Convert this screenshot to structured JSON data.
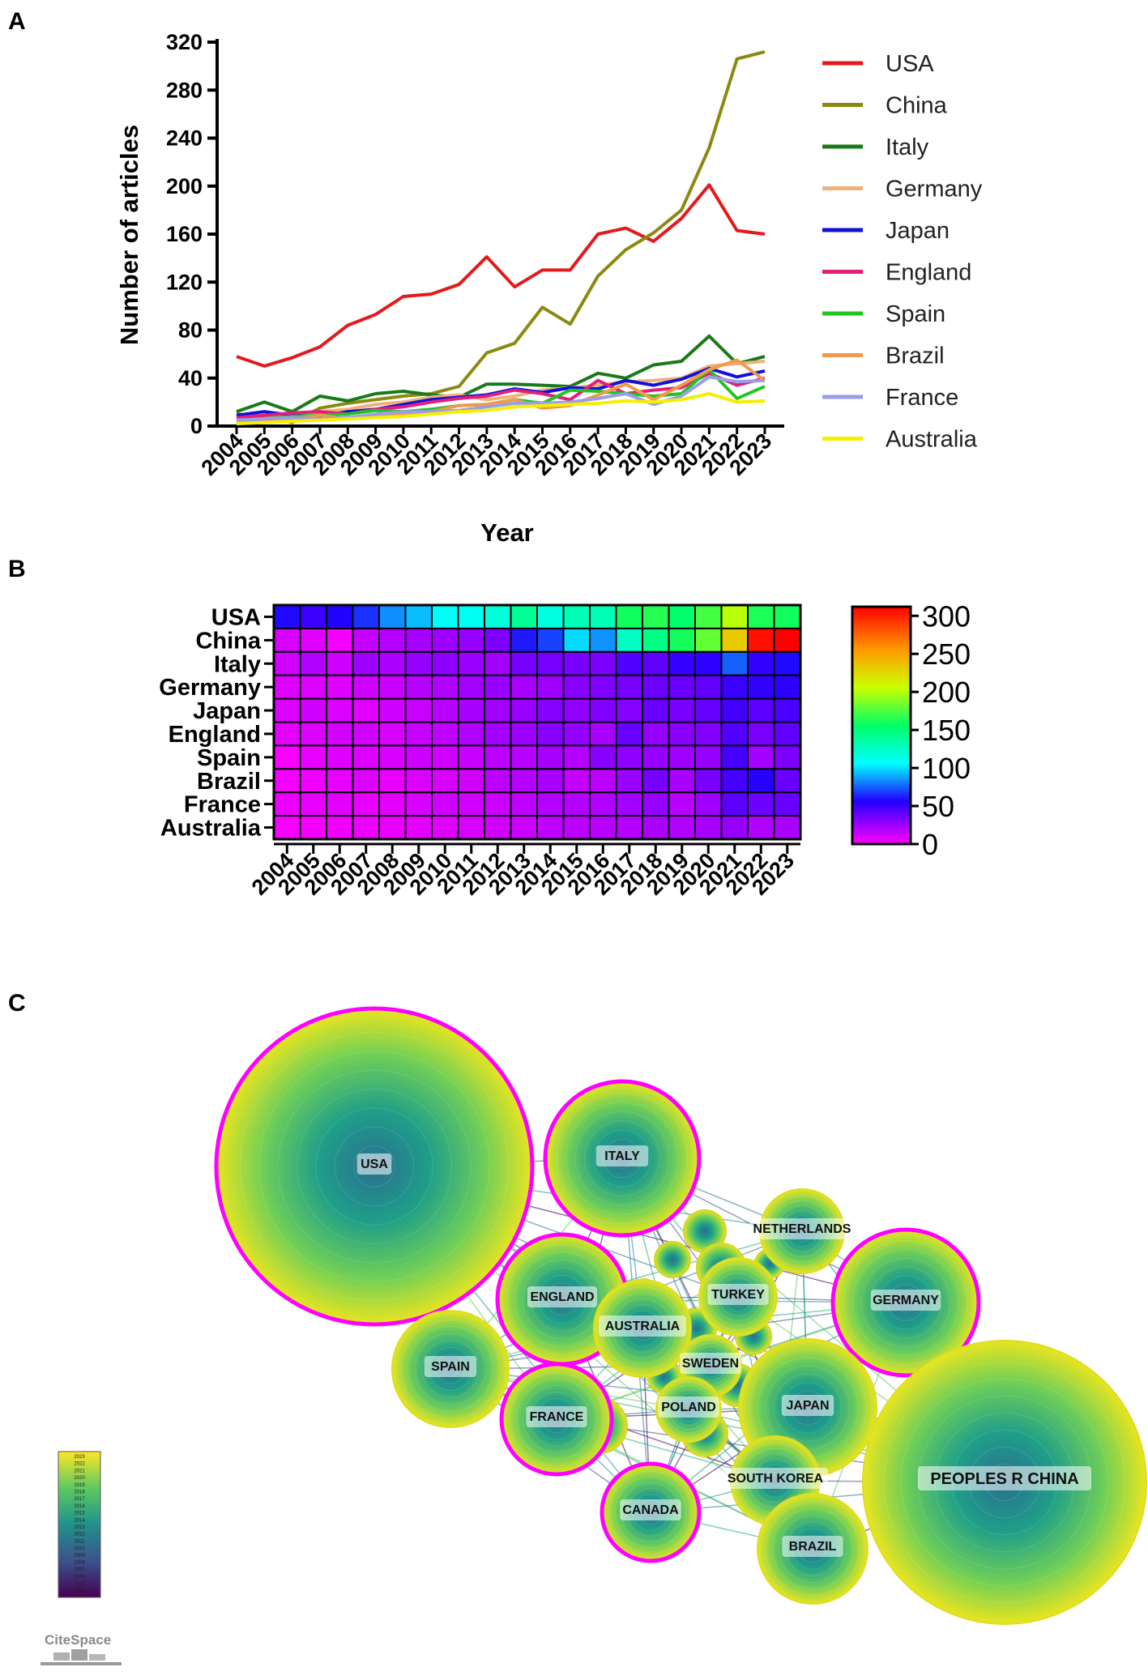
{
  "panels": {
    "a": "A",
    "b": "B",
    "c": "C"
  },
  "chart_data": [
    {
      "type": "line",
      "xlabel": "Year",
      "ylabel": "Number of articles",
      "x": [
        "2004",
        "2005",
        "2006",
        "2007",
        "2008",
        "2009",
        "2010",
        "2011",
        "2012",
        "2013",
        "2014",
        "2015",
        "2016",
        "2017",
        "2018",
        "2019",
        "2020",
        "2021",
        "2022",
        "2023"
      ],
      "yticks": [
        0,
        40,
        80,
        120,
        160,
        200,
        240,
        280,
        320
      ],
      "ylim": [
        0,
        320
      ],
      "legend_position": "right",
      "series": [
        {
          "name": "USA",
          "color": "#e31a1c",
          "values": [
            58,
            50,
            57,
            66,
            84,
            93,
            108,
            110,
            118,
            141,
            116,
            130,
            130,
            160,
            165,
            154,
            173,
            201,
            163,
            160
          ]
        },
        {
          "name": "China",
          "color": "#8a8a10",
          "values": [
            10,
            8,
            3,
            15,
            19,
            22,
            25,
            27,
            33,
            61,
            69,
            99,
            85,
            125,
            147,
            161,
            180,
            232,
            306,
            312
          ]
        },
        {
          "name": "Italy",
          "color": "#1a7a1a",
          "values": [
            12,
            20,
            12,
            25,
            21,
            27,
            29,
            26,
            24,
            35,
            35,
            34,
            33,
            44,
            40,
            51,
            54,
            75,
            52,
            58
          ]
        },
        {
          "name": "Germany",
          "color": "#f0b07a",
          "values": [
            8,
            9,
            8,
            12,
            14,
            18,
            20,
            24,
            26,
            22,
            25,
            30,
            32,
            34,
            37,
            38,
            40,
            50,
            52,
            54
          ]
        },
        {
          "name": "Japan",
          "color": "#1010dd",
          "values": [
            9,
            12,
            9,
            8,
            12,
            14,
            18,
            22,
            24,
            26,
            31,
            28,
            32,
            31,
            38,
            34,
            39,
            48,
            41,
            46
          ]
        },
        {
          "name": "England",
          "color": "#e0207a",
          "values": [
            7,
            9,
            11,
            12,
            10,
            14,
            16,
            20,
            23,
            25,
            30,
            27,
            22,
            38,
            27,
            30,
            32,
            44,
            34,
            40
          ]
        },
        {
          "name": "Spain",
          "color": "#22c422",
          "values": [
            2,
            6,
            8,
            9,
            10,
            13,
            12,
            14,
            17,
            18,
            22,
            19,
            30,
            29,
            27,
            25,
            27,
            47,
            23,
            33
          ]
        },
        {
          "name": "Brazil",
          "color": "#f29a4a",
          "values": [
            3,
            4,
            6,
            9,
            6,
            9,
            10,
            12,
            17,
            18,
            22,
            15,
            17,
            26,
            35,
            22,
            34,
            47,
            55,
            38
          ]
        },
        {
          "name": "France",
          "color": "#9a9ee8",
          "values": [
            5,
            6,
            7,
            6,
            7,
            10,
            12,
            12,
            13,
            16,
            19,
            19,
            20,
            23,
            27,
            18,
            25,
            41,
            37,
            38
          ]
        },
        {
          "name": "Australia",
          "color": "#f5f000",
          "values": [
            2,
            3,
            4,
            5,
            6,
            7,
            8,
            10,
            12,
            13,
            16,
            17,
            18,
            19,
            21,
            20,
            22,
            27,
            20,
            21
          ]
        }
      ]
    },
    {
      "type": "heatmap",
      "rows": [
        "USA",
        "China",
        "Italy",
        "Germany",
        "Japan",
        "England",
        "Spain",
        "Brazil",
        "France",
        "Australia"
      ],
      "columns": [
        "2004",
        "2005",
        "2006",
        "2007",
        "2008",
        "2009",
        "2010",
        "2011",
        "2012",
        "2013",
        "2014",
        "2015",
        "2016",
        "2017",
        "2018",
        "2019",
        "2020",
        "2021",
        "2022",
        "2023"
      ],
      "colorbar_ticks": [
        0,
        50,
        100,
        150,
        200,
        250,
        300
      ],
      "colorbar_range": [
        0,
        312
      ],
      "values": [
        [
          58,
          50,
          57,
          66,
          84,
          93,
          108,
          110,
          118,
          141,
          116,
          130,
          130,
          160,
          165,
          154,
          173,
          201,
          163,
          160
        ],
        [
          10,
          8,
          3,
          15,
          19,
          22,
          25,
          27,
          33,
          61,
          69,
          99,
          85,
          125,
          147,
          161,
          180,
          232,
          306,
          312
        ],
        [
          12,
          20,
          12,
          25,
          21,
          27,
          29,
          26,
          24,
          35,
          35,
          34,
          33,
          44,
          40,
          51,
          54,
          75,
          52,
          58
        ],
        [
          8,
          9,
          8,
          12,
          14,
          18,
          20,
          24,
          26,
          22,
          25,
          30,
          32,
          34,
          37,
          38,
          40,
          50,
          52,
          54
        ],
        [
          9,
          12,
          9,
          8,
          12,
          14,
          18,
          22,
          24,
          26,
          31,
          28,
          32,
          31,
          38,
          34,
          39,
          48,
          41,
          46
        ],
        [
          7,
          9,
          11,
          12,
          10,
          14,
          16,
          20,
          23,
          25,
          30,
          27,
          22,
          38,
          27,
          30,
          32,
          44,
          34,
          40
        ],
        [
          2,
          6,
          8,
          9,
          10,
          13,
          12,
          14,
          17,
          18,
          22,
          19,
          30,
          29,
          27,
          25,
          27,
          47,
          23,
          33
        ],
        [
          3,
          4,
          6,
          9,
          6,
          9,
          10,
          12,
          17,
          18,
          22,
          15,
          17,
          26,
          35,
          22,
          34,
          47,
          55,
          38
        ],
        [
          5,
          6,
          7,
          6,
          7,
          10,
          12,
          12,
          13,
          16,
          19,
          19,
          20,
          23,
          27,
          18,
          25,
          41,
          37,
          38
        ],
        [
          2,
          3,
          4,
          5,
          6,
          7,
          8,
          10,
          12,
          13,
          16,
          17,
          18,
          19,
          21,
          20,
          22,
          27,
          20,
          21
        ]
      ]
    },
    {
      "type": "network",
      "title": "",
      "nodes": [
        "USA",
        "ITALY",
        "NETHERLANDS",
        "ENGLAND",
        "TURKEY",
        "GERMANY",
        "AUSTRALIA",
        "SPAIN",
        "SWEDEN",
        "FRANCE",
        "POLAND",
        "JAPAN",
        "SOUTH KOREA",
        "PEOPLES R CHINA",
        "CANADA",
        "BRAZIL"
      ],
      "highlighted_nodes": [
        "USA",
        "ITALY",
        "ENGLAND",
        "GERMANY",
        "FRANCE",
        "CANADA"
      ],
      "legend_years": [
        "2023",
        "2022",
        "2021",
        "2020",
        "2019",
        "2018",
        "2017",
        "2016",
        "2015",
        "2014",
        "2013",
        "2012",
        "2011",
        "2010",
        "2009",
        "2008",
        "2007",
        "2006",
        "2005",
        "2004"
      ]
    }
  ],
  "logo": {
    "text": "CiteSpace"
  }
}
